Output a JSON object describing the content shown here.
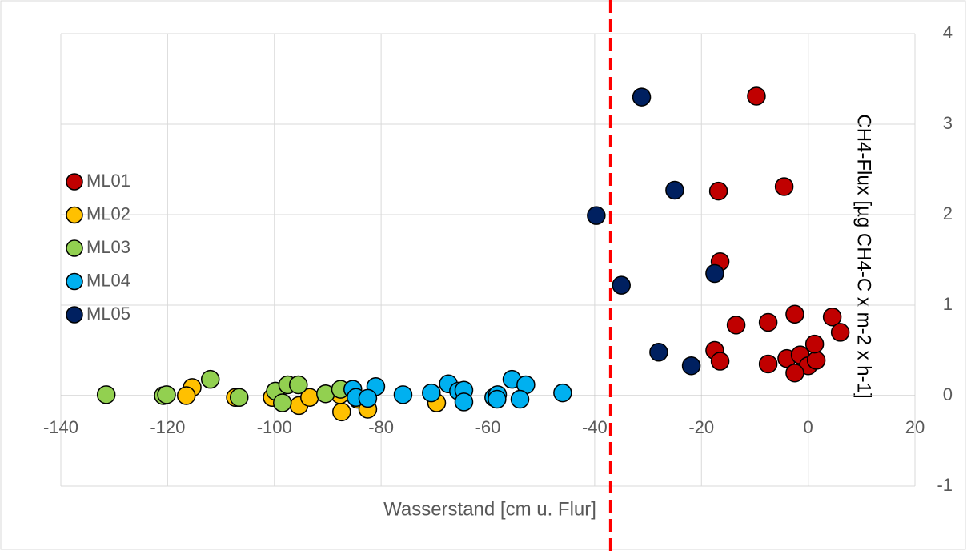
{
  "chart_data": {
    "type": "scatter",
    "x_label": "Wasserstand [cm u. Flur]",
    "y_label": "CH4-Flux [µg CH4-C x m-2 x h-1]",
    "xlim": [
      -140,
      20
    ],
    "xticks": [
      -140,
      -120,
      -100,
      -80,
      -60,
      -40,
      -20,
      0,
      20
    ],
    "ylim": [
      -1,
      4
    ],
    "yticks": [
      -1,
      0,
      1,
      2,
      3,
      4
    ],
    "grid": true,
    "legend": "left",
    "reference_line": {
      "x": -37,
      "color": "#ff0000"
    },
    "series": [
      {
        "name": "ML01",
        "color": "#c00000",
        "x": [
          -9.7,
          -16.8,
          -4.5,
          -16.5,
          -13.5,
          -7.5,
          -2.5,
          4.5,
          6,
          -17.5,
          -16.5,
          -7.5,
          -4,
          -1.5,
          0,
          1.5,
          1.2,
          -2.5
        ],
        "values": [
          3.31,
          2.26,
          2.31,
          1.48,
          0.78,
          0.81,
          0.9,
          0.87,
          0.7,
          0.5,
          0.38,
          0.35,
          0.41,
          0.45,
          0.33,
          0.39,
          0.57,
          0.25
        ]
      },
      {
        "name": "ML02",
        "color": "#ffc000",
        "x": [
          -115.4,
          -116.5,
          -107.3,
          -100.4,
          -95.4,
          -93.4,
          -87.4,
          -84.4,
          -82.5,
          -69.6,
          -87.7
        ],
        "values": [
          0.09,
          0.0,
          -0.02,
          -0.02,
          -0.11,
          -0.02,
          -0.18,
          -0.04,
          -0.15,
          -0.08,
          0.01
        ]
      },
      {
        "name": "ML03",
        "color": "#92d050",
        "x": [
          -131.5,
          -120.8,
          -120.2,
          -112,
          -106.6,
          -99.8,
          -98.5,
          -97.5,
          -95.5,
          -90.4,
          -87.6
        ],
        "values": [
          0.01,
          0.0,
          0.01,
          0.18,
          -0.02,
          0.05,
          -0.08,
          0.12,
          0.12,
          0.02,
          0.07
        ]
      },
      {
        "name": "ML04",
        "color": "#00b0f0",
        "x": [
          -85.3,
          -84.7,
          -81,
          -82.5,
          -75.9,
          -70.6,
          -67.4,
          -65.5,
          -64.5,
          -64.5,
          -58.9,
          -58.2,
          -55.5,
          -52.9,
          -54,
          -58.3,
          -46
        ],
        "values": [
          0.07,
          -0.02,
          0.1,
          -0.03,
          0.01,
          0.03,
          0.13,
          0.05,
          0.06,
          -0.07,
          -0.02,
          0.01,
          0.18,
          0.12,
          -0.04,
          -0.04,
          0.03
        ]
      },
      {
        "name": "ML05",
        "color": "#002060",
        "x": [
          -31.2,
          -25,
          -39.7,
          -35,
          -17.5,
          -28,
          -21.9
        ],
        "values": [
          3.3,
          2.27,
          1.99,
          1.22,
          1.35,
          0.48,
          0.33
        ]
      }
    ]
  }
}
